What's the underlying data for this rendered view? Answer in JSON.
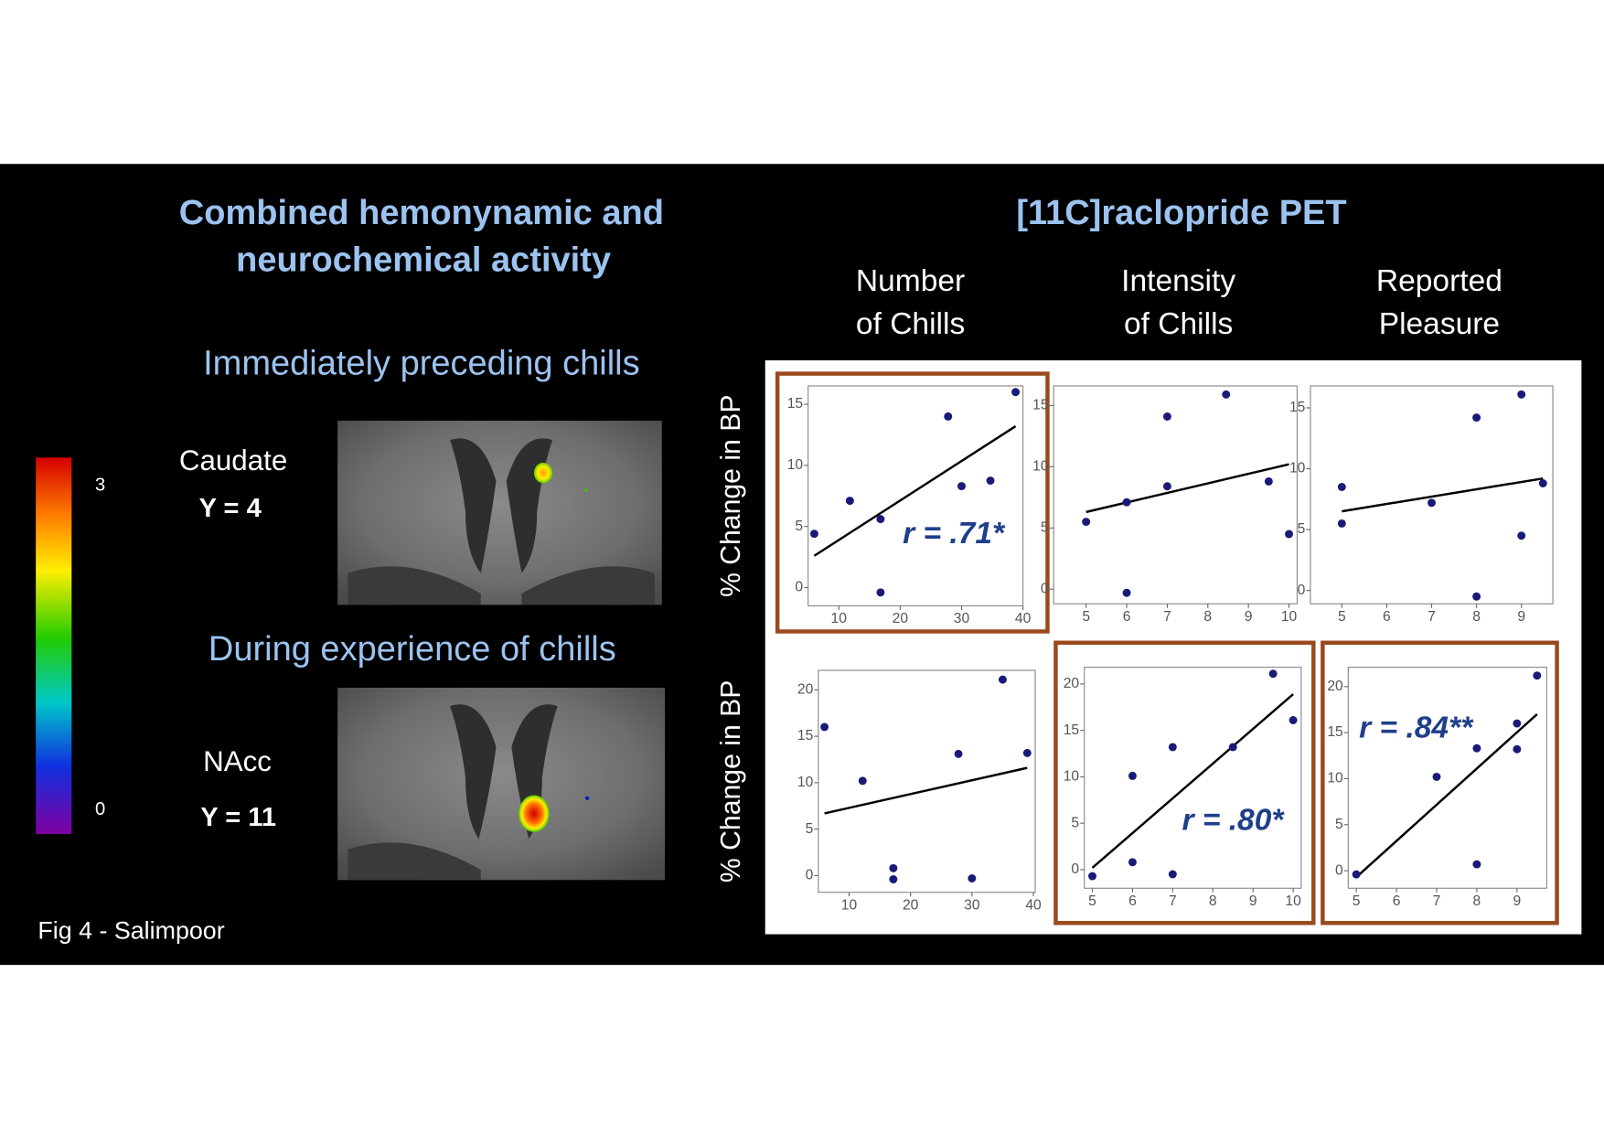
{
  "left_panel": {
    "title": [
      "Combined hemonynamic and",
      "neurochemical activity"
    ],
    "preceding_label": "Immediately preceding chills",
    "during_label": "During experience of chills",
    "brain_panels": [
      {
        "region": "Caudate",
        "coord": "Y = 4"
      },
      {
        "region": "NAcc",
        "coord": "Y = 11"
      }
    ],
    "colorbar": {
      "lim": [
        -0.22,
        3.26
      ],
      "ticks": [
        0,
        3
      ]
    },
    "caption": "Fig 4 - Salimpoor"
  },
  "right_title": "[11C]raclopride PET",
  "chart_data": [
    {
      "type": "scatter",
      "title": [
        "Number",
        "of Chills"
      ],
      "ylabel": "% Change in BP",
      "x": [
        6,
        11.8,
        16.8,
        16.8,
        27.8,
        30,
        34.7,
        38.8
      ],
      "values": [
        4.4,
        7.1,
        5.6,
        -0.4,
        14,
        8.3,
        8.75,
        16
      ],
      "fit": {
        "x": [
          6,
          38.8
        ],
        "values": [
          2.6,
          13.2
        ]
      },
      "xlim": [
        5,
        40
      ],
      "ylim": [
        -1.5,
        16.5
      ],
      "xticks": [
        10,
        20,
        30,
        40
      ],
      "yticks": [
        0,
        5,
        10,
        15
      ],
      "color": "#1a1a78",
      "annotation": "r = .71*",
      "highlight": true
    },
    {
      "type": "scatter",
      "title": [
        "Intensity",
        "of Chills"
      ],
      "x": [
        5,
        6,
        6,
        7,
        7,
        8.45,
        9.5,
        10
      ],
      "values": [
        5.5,
        7.1,
        -0.3,
        14.1,
        8.4,
        15.9,
        8.8,
        4.5
      ],
      "fit": {
        "x": [
          5,
          10
        ],
        "values": [
          6.3,
          10.2
        ]
      },
      "xlim": [
        4.2,
        10.2
      ],
      "ylim": [
        -1.2,
        16.6
      ],
      "xticks": [
        5,
        6,
        7,
        8,
        9,
        10
      ],
      "yticks": [
        0,
        5,
        10,
        15
      ],
      "color": "#1a1a78",
      "highlight": false
    },
    {
      "type": "scatter",
      "title": [
        "Reported",
        "Pleasure"
      ],
      "x": [
        5,
        5,
        7,
        8,
        8,
        9,
        9,
        9.48
      ],
      "values": [
        5.5,
        8.5,
        7.2,
        14.2,
        -0.5,
        16.1,
        4.5,
        8.8
      ],
      "fit": {
        "x": [
          5,
          9.48
        ],
        "values": [
          6.5,
          9.2
        ]
      },
      "xlim": [
        4.3,
        9.7
      ],
      "ylim": [
        -1.1,
        16.8
      ],
      "xticks": [
        5,
        6,
        7,
        8,
        9
      ],
      "yticks": [
        0,
        5,
        10,
        15
      ],
      "color": "#1a1a78",
      "highlight": false
    },
    {
      "type": "scatter",
      "ylabel": "% Change in BP",
      "x": [
        6,
        12.2,
        17.2,
        17.2,
        27.8,
        30,
        35,
        39
      ],
      "values": [
        16,
        10.2,
        0.8,
        -0.4,
        13.1,
        -0.3,
        21.1,
        13.2
      ],
      "fit": {
        "x": [
          6,
          39
        ],
        "values": [
          6.7,
          11.6
        ]
      },
      "xlim": [
        5,
        40.3
      ],
      "ylim": [
        -1.8,
        22.1
      ],
      "xticks": [
        10,
        20,
        30,
        40
      ],
      "yticks": [
        0,
        5,
        10,
        15,
        20
      ],
      "color": "#1a1a78",
      "highlight": false
    },
    {
      "type": "scatter",
      "x": [
        5,
        6,
        6,
        7,
        7,
        8.5,
        9.5,
        10
      ],
      "values": [
        -0.7,
        10.1,
        0.8,
        13.2,
        -0.5,
        13.2,
        21.1,
        16.1
      ],
      "fit": {
        "x": [
          5,
          10
        ],
        "values": [
          0.2,
          18.9
        ]
      },
      "xlim": [
        4.8,
        10.2
      ],
      "ylim": [
        -2,
        21.8
      ],
      "xticks": [
        5,
        6,
        7,
        8,
        9,
        10
      ],
      "yticks": [
        0,
        5,
        10,
        15,
        20
      ],
      "color": "#1a1a78",
      "annotation": "r = .80*",
      "highlight": true
    },
    {
      "type": "scatter",
      "x": [
        5,
        7,
        8,
        8,
        9,
        9,
        9.5
      ],
      "values": [
        -0.4,
        10.2,
        13.3,
        0.7,
        16,
        13.2,
        21.2
      ],
      "fit": {
        "x": [
          5,
          9.5
        ],
        "values": [
          -0.7,
          17
        ]
      },
      "xlim": [
        4.8,
        9.74
      ],
      "ylim": [
        -1.9,
        22.1
      ],
      "xticks": [
        5,
        6,
        7,
        8,
        9
      ],
      "yticks": [
        0,
        5,
        10,
        15,
        20
      ],
      "color": "#1a1a78",
      "annotation": "r = .84**",
      "highlight": true
    }
  ]
}
